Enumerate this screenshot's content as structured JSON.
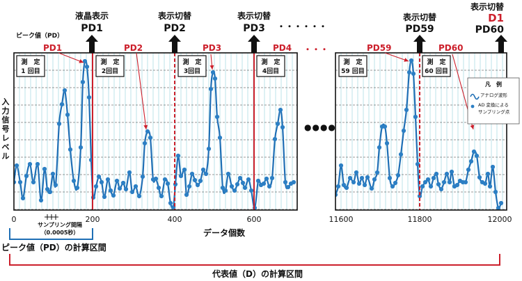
{
  "colors": {
    "red": "#cc1f2b",
    "blue": "#1f6fb5",
    "dot": "#2c7fc4",
    "grid": "#9fd7de",
    "black": "#111111"
  },
  "y_axis_label": "入力信号レベル",
  "x_axis_label": "データ個数",
  "x_ticks_left": [
    "0",
    "200",
    "400",
    "600"
  ],
  "x_ticks_right": [
    "11600",
    "11800",
    "12000"
  ],
  "peak_label": "ピーク値（PD）",
  "sampling_note": {
    "line1": "サンプリング間隔",
    "line2": "（0.0005秒）"
  },
  "pd_section_label": "ピーク値（PD）の計算区間",
  "d_section_label": "代表値（D）の計算区間",
  "gap_dots": "・・・・・・",
  "gap_red_dots": "・・・",
  "gap_big_dots": "●●●●",
  "top_labels": [
    {
      "action": "液晶表示",
      "name": "PD1"
    },
    {
      "action": "表示切替",
      "name": "PD2"
    },
    {
      "action": "表示切替",
      "name": "PD3"
    },
    {
      "action": "表示切替",
      "name": "PD59"
    },
    {
      "action": "表示切替",
      "name": "D1"
    },
    {
      "action": "",
      "name": "PD60"
    }
  ],
  "peak_tags": [
    "PD1",
    "PD2",
    "PD3",
    "PD4",
    "PD59",
    "PD60"
  ],
  "measure_boxes": [
    {
      "top": "測　定",
      "bottom": "1 回目"
    },
    {
      "top": "測　定",
      "bottom": "2回目"
    },
    {
      "top": "測　定",
      "bottom": "3回目"
    },
    {
      "top": "測　定",
      "bottom": "4回目"
    },
    {
      "top": "測　定",
      "bottom": "59 回目"
    },
    {
      "top": "測　定",
      "bottom": "60 回目"
    }
  ],
  "legend": {
    "title": "凡　例",
    "analog": "アナログ波形",
    "sample_line1": "AD 変換による",
    "sample_line2": "サンプリング点"
  }
}
